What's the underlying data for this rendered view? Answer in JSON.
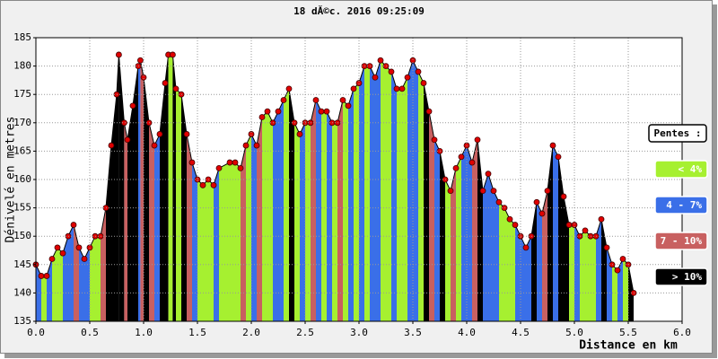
{
  "chart_data": {
    "type": "elevation-profile",
    "title": "18 dĂ©c. 2016 09:25:09",
    "x_label": "Distance en km",
    "y_label": "Dénivelé en metres",
    "xlim": [
      0,
      6
    ],
    "ylim": [
      135,
      185
    ],
    "xticks": [
      {
        "value": 0,
        "label": "0.0"
      },
      0.5,
      {
        "value": 1,
        "label": "1.0"
      },
      1.5,
      {
        "value": 2,
        "label": "2.0"
      },
      2.5,
      {
        "value": 3,
        "label": "3.0"
      },
      3.5,
      {
        "value": 4,
        "label": "4.0"
      },
      4.5,
      {
        "value": 5,
        "label": "5.0"
      },
      5.5,
      {
        "value": 6,
        "label": "6.0"
      }
    ],
    "yticks": [
      135,
      140,
      145,
      150,
      155,
      160,
      165,
      170,
      175,
      180,
      185
    ],
    "grid": true,
    "line_color": "#000000",
    "marker_color": "#e00000",
    "x": [
      0.0,
      0.05,
      0.1,
      0.15,
      0.2,
      0.25,
      0.3,
      0.35,
      0.4,
      0.45,
      0.5,
      0.55,
      0.6,
      0.65,
      0.7,
      0.75,
      0.77,
      0.82,
      0.85,
      0.9,
      0.95,
      0.97,
      1.0,
      1.05,
      1.1,
      1.15,
      1.2,
      1.23,
      1.27,
      1.3,
      1.35,
      1.4,
      1.45,
      1.5,
      1.55,
      1.6,
      1.65,
      1.7,
      1.8,
      1.85,
      1.9,
      1.95,
      2.0,
      2.05,
      2.1,
      2.15,
      2.2,
      2.25,
      2.3,
      2.35,
      2.4,
      2.45,
      2.5,
      2.55,
      2.6,
      2.65,
      2.7,
      2.75,
      2.8,
      2.85,
      2.9,
      2.95,
      3.0,
      3.05,
      3.1,
      3.15,
      3.2,
      3.25,
      3.3,
      3.35,
      3.4,
      3.45,
      3.5,
      3.55,
      3.6,
      3.65,
      3.7,
      3.75,
      3.8,
      3.85,
      3.9,
      3.95,
      4.0,
      4.05,
      4.1,
      4.15,
      4.2,
      4.25,
      4.3,
      4.35,
      4.4,
      4.45,
      4.5,
      4.55,
      4.6,
      4.65,
      4.7,
      4.75,
      4.8,
      4.85,
      4.9,
      4.95,
      5.0,
      5.05,
      5.1,
      5.15,
      5.2,
      5.25,
      5.3,
      5.35,
      5.4,
      5.45,
      5.5,
      5.55
    ],
    "values": [
      145,
      143,
      143,
      146,
      148,
      147,
      150,
      152,
      148,
      146,
      148,
      150,
      150,
      155,
      166,
      175,
      182,
      170,
      167,
      173,
      180,
      181,
      178,
      170,
      166,
      168,
      177,
      182,
      182,
      176,
      175,
      168,
      163,
      160,
      159,
      160,
      159,
      162,
      163,
      163,
      162,
      166,
      168,
      166,
      171,
      172,
      170,
      172,
      174,
      176,
      170,
      168,
      170,
      170,
      174,
      172,
      172,
      170,
      170,
      174,
      173,
      176,
      177,
      180,
      180,
      178,
      181,
      180,
      179,
      176,
      176,
      178,
      181,
      179,
      177,
      172,
      167,
      165,
      160,
      158,
      162,
      164,
      166,
      163,
      167,
      158,
      161,
      158,
      156,
      155,
      153,
      152,
      150,
      148,
      150,
      156,
      154,
      158,
      166,
      164,
      157,
      152,
      152,
      150,
      151,
      150,
      150,
      153,
      148,
      145,
      144,
      146,
      145,
      140
    ],
    "legend_title": "Pentes :",
    "slope_classes": [
      {
        "label": "< 4%",
        "max": 4,
        "color": "#a6f030"
      },
      {
        "label": "4 - 7%",
        "max": 7,
        "color": "#3a6fe8"
      },
      {
        "label": "7 - 10%",
        "max": 10,
        "color": "#c86060"
      },
      {
        "label": "> 10%",
        "color": "#000000"
      }
    ]
  }
}
